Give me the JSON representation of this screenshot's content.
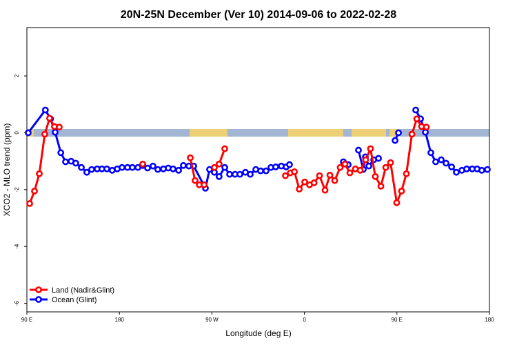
{
  "chart_data": {
    "type": "line",
    "title": "20N-25N December (Ver 10)   2014-09-06 to 2022-02-28",
    "xlabel": "Longitude (deg E)",
    "ylabel": "XCO2 - MLO trend (ppm)",
    "xlim": [
      90,
      540
    ],
    "xticks": [
      {
        "value": 90,
        "label": "90 E"
      },
      180,
      {
        "value": 270,
        "label": "90 W"
      },
      {
        "value": 360,
        "label": "0"
      },
      {
        "value": 450,
        "label": "90 E"
      },
      {
        "value": 540,
        "label": "180"
      }
    ],
    "ylim": [
      -6.3,
      3.7
    ],
    "yticks": [
      -6,
      -4,
      -2,
      0,
      2
    ],
    "legend": "bottom left",
    "series": [
      {
        "name": "Ocean (Glint)",
        "color": "#0000ff",
        "x": [
          91.3,
          108,
          113,
          117.5,
          123,
          127.6,
          133,
          137.6,
          143,
          148.3,
          153,
          158.4,
          163,
          167.8,
          173,
          177.9,
          182.6,
          187.9,
          192.6,
          198,
          202.7,
          207.4,
          212.7,
          217.4,
          222.8,
          227.5,
          232.2,
          237.6,
          242.2,
          247.6,
          252.3,
          263.7,
          267.7,
          272.4,
          277,
          282.5,
          287.2,
          292.5,
          297.2,
          302.6,
          307.3,
          312.7,
          317.4,
          322.7,
          327.4,
          332.1,
          337.5,
          342.2,
          345.5,
          null,
          397.9,
          402.6,
          null,
          412.6,
          417.3,
          419.3,
          422.7,
          427.4,
          432.1,
          null,
          448.2,
          451.5,
          null,
          468.3,
          473,
          477.7,
          483,
          487.7,
          493.1,
          497.8,
          503.2,
          507.8,
          513.2,
          517.9,
          523.3,
          528,
          532.6,
          538
        ],
        "values": [
          0,
          0.8,
          0.49,
          0.02,
          -0.7,
          -1.02,
          -1,
          -1.07,
          -1.22,
          -1.39,
          -1.29,
          -1.27,
          -1.27,
          -1.27,
          -1.32,
          -1.27,
          -1.22,
          -1.22,
          -1.22,
          -1.22,
          -1.15,
          -1.24,
          -1.17,
          -1.29,
          -1.27,
          -1.24,
          -1.27,
          -1.32,
          -1.15,
          -1.17,
          -1.17,
          -1.95,
          -1.29,
          -1.39,
          -1.54,
          -1.22,
          -1.46,
          -1.46,
          -1.46,
          -1.39,
          -1.46,
          -1.29,
          -1.34,
          -1.34,
          -1.22,
          -1.2,
          -1.17,
          -1.2,
          -1.12,
          null,
          -1.02,
          -1.12,
          null,
          -0.61,
          -1.29,
          -0.85,
          -1.17,
          -0.95,
          -0.9,
          null,
          -0.27,
          0,
          null,
          0.8,
          0.49,
          0.02,
          -0.7,
          -1.02,
          -0.95,
          -1.07,
          -1.2,
          -1.39,
          -1.32,
          -1.27,
          -1.27,
          -1.27,
          -1.32,
          -1.29
        ]
      },
      {
        "name": "Land (Nadir&Glint)",
        "color": "#ff0000",
        "x": [
          92.7,
          97.4,
          102.1,
          107.4,
          112.1,
          116.8,
          121.5,
          null,
          202.7,
          null,
          249,
          253.6,
          257.7,
          262.4,
          null,
          272.4,
          277,
          282.5,
          null,
          341.5,
          346.2,
          350.3,
          355,
          360.3,
          365,
          369.4,
          374.7,
          380.1,
          384.8,
          389.5,
          394.8,
          399.5,
          404.2,
          409.6,
          414.3,
          419.6,
          424.3,
          429,
          434.4,
          439.1,
          443.8,
          449.8,
          454.5,
          459.2,
          464.6,
          469.3,
          474,
          478.7
        ],
        "values": [
          -2.49,
          -2.05,
          -1.44,
          -0.05,
          0.51,
          0.22,
          0.2,
          null,
          -1.1,
          null,
          -0.88,
          -1.68,
          -1.83,
          -1.83,
          null,
          -1.22,
          -1.1,
          -0.56,
          null,
          -1.51,
          -1.41,
          -1.37,
          -1.98,
          -1.73,
          -1.83,
          -1.76,
          -1.51,
          -2.02,
          -1.49,
          -1.68,
          -1.22,
          -1.1,
          -1.41,
          -1.27,
          -1.32,
          -0.95,
          -0.56,
          -1.54,
          -1.88,
          -1.22,
          -1.05,
          -2.46,
          -2.05,
          -1.44,
          -0.05,
          0.49,
          0.22,
          0.2
        ]
      }
    ]
  }
}
